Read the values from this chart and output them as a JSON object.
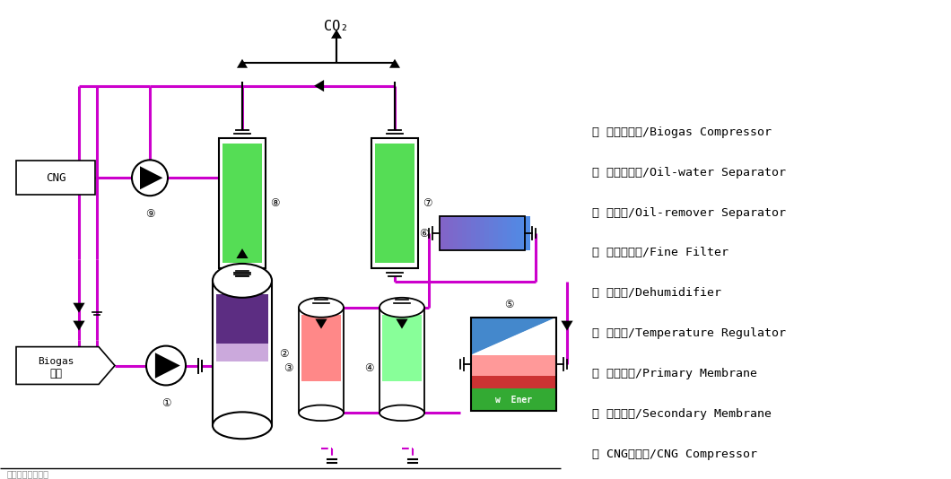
{
  "bg": "#ffffff",
  "mg": "#cc00cc",
  "bk": "#000000",
  "legend": [
    {
      "n": "①",
      "zh": "沼气压缩机",
      "en": "Biogas Compressor"
    },
    {
      "n": "②",
      "zh": "油水分离器",
      "en": "Oil-water Separator"
    },
    {
      "n": "③",
      "zh": "除油器",
      "en": "Oil-remover Separator"
    },
    {
      "n": "④",
      "zh": "精密过滤器",
      "en": "Fine Filter"
    },
    {
      "n": "⑤",
      "zh": "除湿器",
      "en": "Dehumidifier"
    },
    {
      "n": "⑥",
      "zh": "调湿器",
      "en": "Temperature Regulator"
    },
    {
      "n": "⑦",
      "zh": "一级膜件",
      "en": "Primary Membrane"
    },
    {
      "n": "⑧",
      "zh": "二级膜件",
      "en": "Secondary Membrane"
    },
    {
      "n": "⑨",
      "zh": "CNG压缩机",
      "en": "CNG Compressor"
    }
  ],
  "lw_pipe": 2.2,
  "lw_border": 1.5,
  "co2_label": "CO₂",
  "biogas_en": "Biogas",
  "biogas_zh": "沼气",
  "cng_label": "CNG",
  "bottom_text": "上海瑞策能源公司"
}
